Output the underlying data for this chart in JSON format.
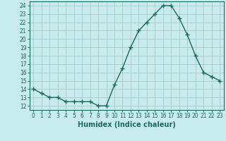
{
  "x": [
    0,
    1,
    2,
    3,
    4,
    5,
    6,
    7,
    8,
    9,
    10,
    11,
    12,
    13,
    14,
    15,
    16,
    17,
    18,
    19,
    20,
    21,
    22,
    23
  ],
  "y": [
    14,
    13.5,
    13,
    13,
    12.5,
    12.5,
    12.5,
    12.5,
    12,
    12,
    14.5,
    16.5,
    19,
    21,
    22,
    23,
    24,
    24,
    22.5,
    20.5,
    18,
    16,
    15.5,
    15
  ],
  "line_color": "#1a6b5a",
  "marker": "+",
  "marker_size": 4,
  "bg_color": "#c8ecec",
  "grid_color": "#b0c8c8",
  "xlabel": "Humidex (Indice chaleur)",
  "ylim": [
    11.5,
    24.5
  ],
  "xlim": [
    -0.5,
    23.5
  ],
  "yticks": [
    12,
    13,
    14,
    15,
    16,
    17,
    18,
    19,
    20,
    21,
    22,
    23,
    24
  ],
  "xticks": [
    0,
    1,
    2,
    3,
    4,
    5,
    6,
    7,
    8,
    9,
    10,
    11,
    12,
    13,
    14,
    15,
    16,
    17,
    18,
    19,
    20,
    21,
    22,
    23
  ],
  "tick_fontsize": 5.5,
  "xlabel_fontsize": 7,
  "line_width": 1.0,
  "marker_color": "#1a6b5a"
}
